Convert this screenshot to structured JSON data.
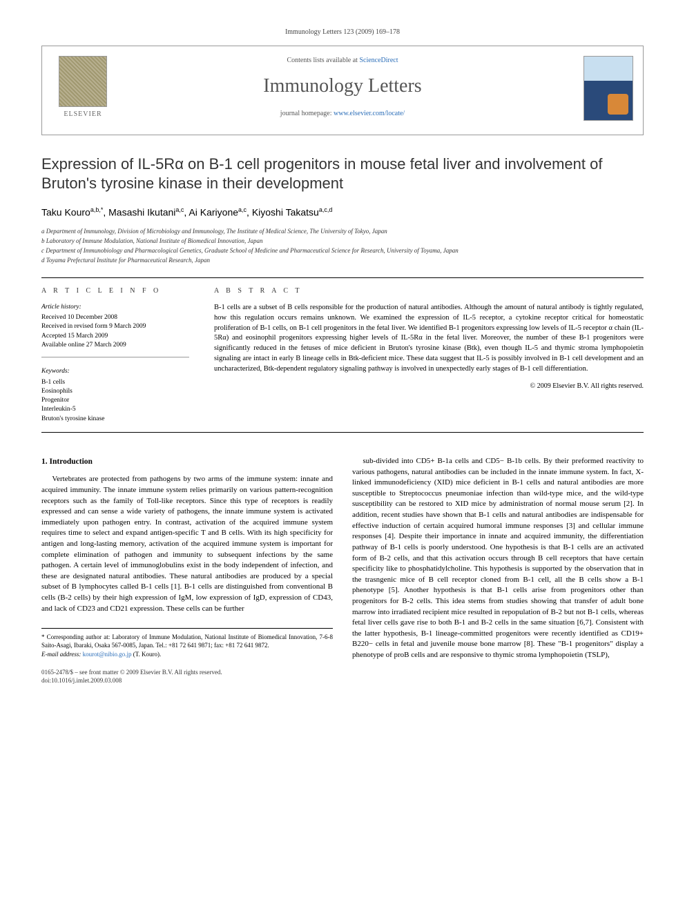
{
  "header": {
    "citation": "Immunology Letters 123 (2009) 169–178"
  },
  "masthead": {
    "contents_prefix": "Contents lists available at ",
    "contents_link": "ScienceDirect",
    "journal_title": "Immunology Letters",
    "homepage_prefix": "journal homepage: ",
    "homepage_url": "www.elsevier.com/locate/",
    "publisher_name": "ELSEVIER"
  },
  "article": {
    "title": "Expression of IL-5Rα on B-1 cell progenitors in mouse fetal liver and involvement of Bruton's tyrosine kinase in their development",
    "authors_html": "Taku Kouro<sup>a,b,*</sup>, Masashi Ikutani<sup>a,c</sup>, Ai Kariyone<sup>a,c</sup>, Kiyoshi Takatsu<sup>a,c,d</sup>",
    "affiliations": [
      "a Department of Immunology, Division of Microbiology and Immunology, The Institute of Medical Science, The University of Tokyo, Japan",
      "b Laboratory of Immune Modulation, National Institute of Biomedical Innovation, Japan",
      "c Department of Immunobiology and Pharmacological Genetics, Graduate School of Medicine and Pharmaceutical Science for Research, University of Toyama, Japan",
      "d Toyama Prefectural Institute for Pharmaceutical Research, Japan"
    ]
  },
  "info": {
    "heading": "A R T I C L E   I N F O",
    "history_label": "Article history:",
    "history": [
      "Received 10 December 2008",
      "Received in revised form 9 March 2009",
      "Accepted 15 March 2009",
      "Available online 27 March 2009"
    ],
    "keywords_label": "Keywords:",
    "keywords": [
      "B-1 cells",
      "Eosinophils",
      "Progenitor",
      "Interleukin-5",
      "Bruton's tyrosine kinase"
    ]
  },
  "abstract": {
    "heading": "A B S T R A C T",
    "text": "B-1 cells are a subset of B cells responsible for the production of natural antibodies. Although the amount of natural antibody is tightly regulated, how this regulation occurs remains unknown. We examined the expression of IL-5 receptor, a cytokine receptor critical for homeostatic proliferation of B-1 cells, on B-1 cell progenitors in the fetal liver. We identified B-1 progenitors expressing low levels of IL-5 receptor α chain (IL-5Rα) and eosinophil progenitors expressing higher levels of IL-5Rα in the fetal liver. Moreover, the number of these B-1 progenitors were significantly reduced in the fetuses of mice deficient in Bruton's tyrosine kinase (Btk), even though IL-5 and thymic stroma lymphopoietin signaling are intact in early B lineage cells in Btk-deficient mice. These data suggest that IL-5 is possibly involved in B-1 cell development and an uncharacterized, Btk-dependent regulatory signaling pathway is involved in unexpectedly early stages of B-1 cell differentiation.",
    "copyright": "© 2009 Elsevier B.V. All rights reserved."
  },
  "body": {
    "section_heading": "1. Introduction",
    "col1": "Vertebrates are protected from pathogens by two arms of the immune system: innate and acquired immunity. The innate immune system relies primarily on various pattern-recognition receptors such as the family of Toll-like receptors. Since this type of receptors is readily expressed and can sense a wide variety of pathogens, the innate immune system is activated immediately upon pathogen entry. In contrast, activation of the acquired immune system requires time to select and expand antigen-specific T and B cells. With its high specificity for antigen and long-lasting memory, activation of the acquired immune system is important for complete elimination of pathogen and immunity to subsequent infections by the same pathogen. A certain level of immunoglobulins exist in the body independent of infection, and these are designated natural antibodies. These natural antibodies are produced by a special subset of B lymphocytes called B-1 cells [1]. B-1 cells are distinguished from conventional B cells (B-2 cells) by their high expression of IgM, low expression of IgD, expression of CD43, and lack of CD23 and CD21 expression. These cells can be further",
    "col2": "sub-divided into CD5+ B-1a cells and CD5− B-1b cells. By their preformed reactivity to various pathogens, natural antibodies can be included in the innate immune system. In fact, X-linked immunodeficiency (XID) mice deficient in B-1 cells and natural antibodies are more susceptible to Streptococcus pneumoniae infection than wild-type mice, and the wild-type susceptibility can be restored to XID mice by administration of normal mouse serum [2]. In addition, recent studies have shown that B-1 cells and natural antibodies are indispensable for effective induction of certain acquired humoral immune responses [3] and cellular immune responses [4]. Despite their importance in innate and acquired immunity, the differentiation pathway of B-1 cells is poorly understood. One hypothesis is that B-1 cells are an activated form of B-2 cells, and that this activation occurs through B cell receptors that have certain specificity like to phosphatidylcholine. This hypothesis is supported by the observation that in the trasngenic mice of B cell receptor cloned from B-1 cell, all the B cells show a B-1 phenotype [5]. Another hypothesis is that B-1 cells arise from progenitors other than progenitors for B-2 cells. This idea stems from studies showing that transfer of adult bone marrow into irradiated recipient mice resulted in repopulation of B-2 but not B-1 cells, whereas fetal liver cells gave rise to both B-1 and B-2 cells in the same situation [6,7]. Consistent with the latter hypothesis, B-1 lineage-committed progenitors were recently identified as CD19+ B220− cells in fetal and juvenile mouse bone marrow [8]. These \"B-1 progenitors\" display a phenotype of proB cells and are responsive to thymic stroma lymphopoietin (TSLP),"
  },
  "footnotes": {
    "corresponding": "* Corresponding author at: Laboratory of Immune Modulation, National Institute of Biomedical Innovation, 7-6-8 Saito-Asagi, Ibaraki, Osaka 567-0085, Japan. Tel.: +81 72 641 9871; fax: +81 72 641 9872.",
    "email_label": "E-mail address: ",
    "email": "kourot@nibio.go.jp",
    "email_suffix": " (T. Kouro)."
  },
  "footer": {
    "line1": "0165-2478/$ – see front matter © 2009 Elsevier B.V. All rights reserved.",
    "line2": "doi:10.1016/j.imlet.2009.03.008"
  },
  "colors": {
    "link": "#2a6db8",
    "text": "#000000",
    "muted": "#555555",
    "border": "#999999"
  },
  "typography": {
    "body_pt": 11,
    "title_pt": 22,
    "journal_title_pt": 28,
    "abstract_pt": 10.5,
    "small_pt": 9
  }
}
